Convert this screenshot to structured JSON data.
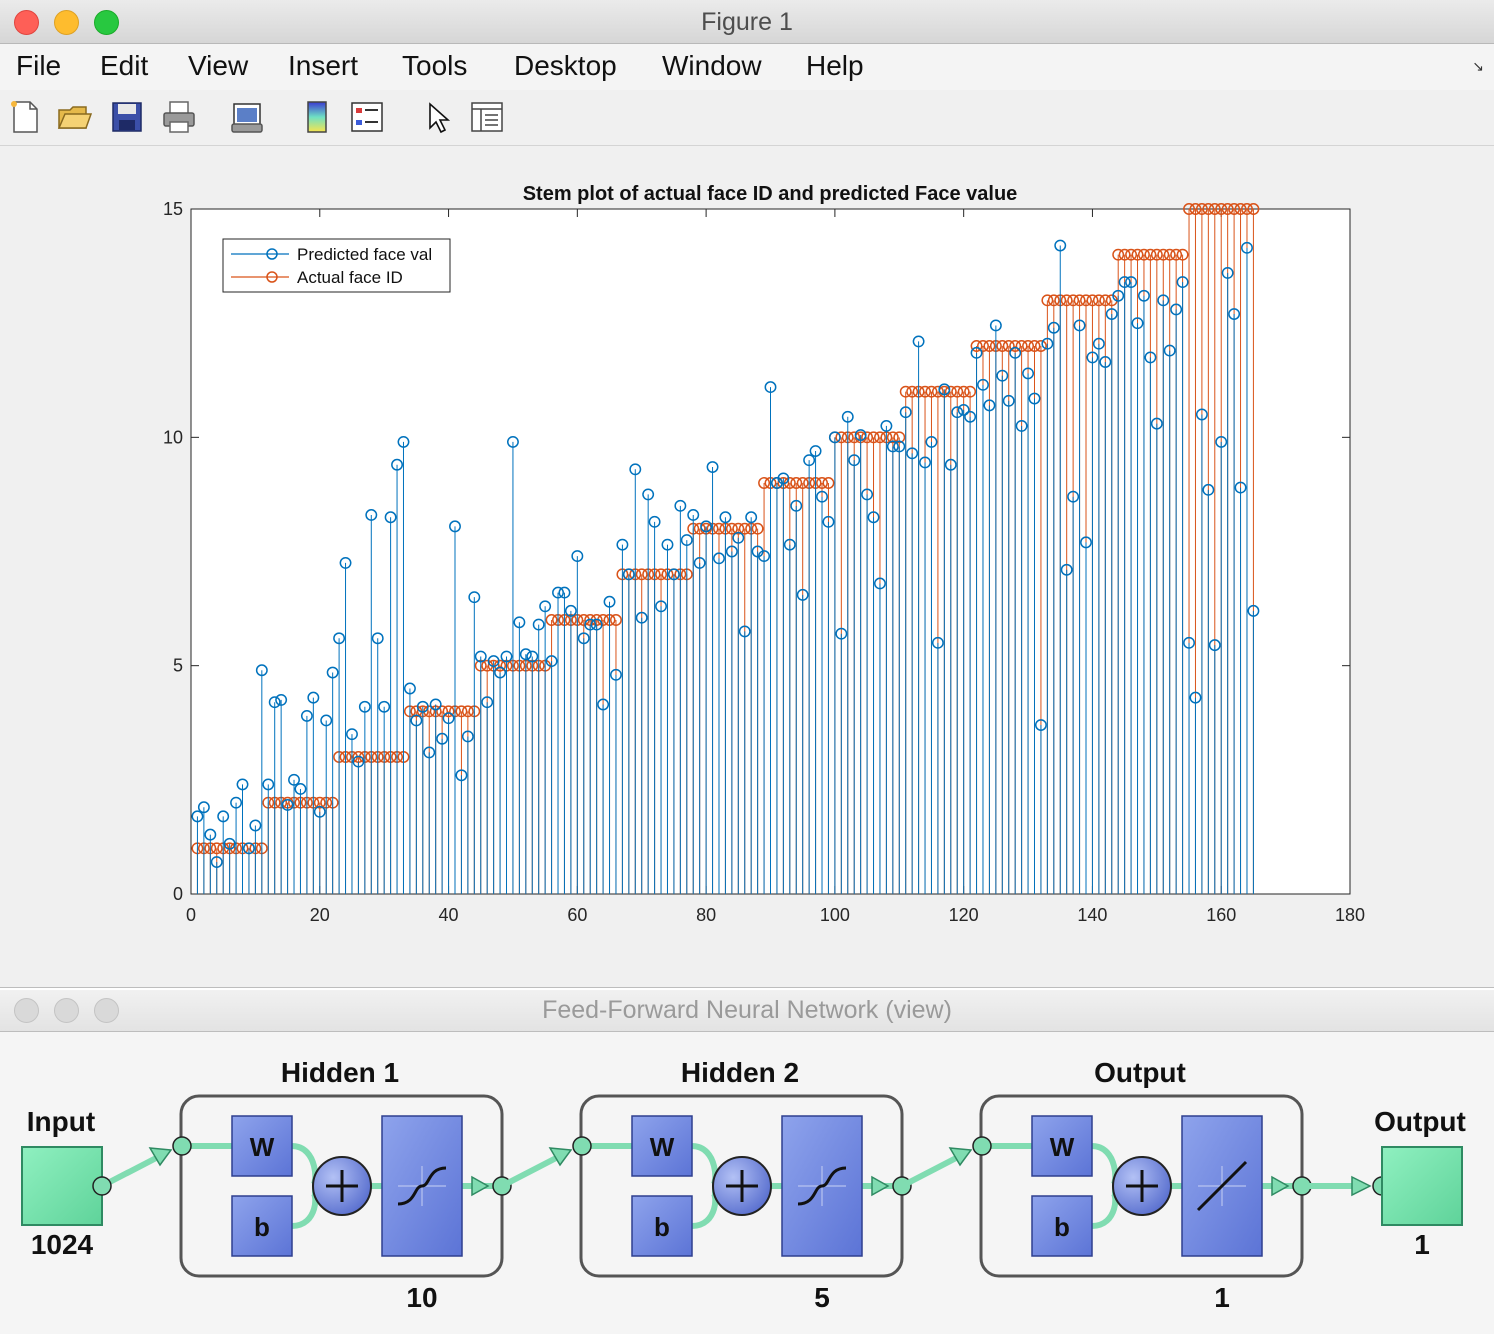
{
  "figure_window": {
    "title": "Figure 1",
    "menu": [
      "File",
      "Edit",
      "View",
      "Insert",
      "Tools",
      "Desktop",
      "Window",
      "Help"
    ],
    "toolbar_icons": [
      "new-figure-icon",
      "open-file-icon",
      "save-icon",
      "print-icon",
      "print-preview-icon",
      "colorbar-icon",
      "legend-icon",
      "pointer-icon",
      "property-editor-icon"
    ]
  },
  "chart_data": {
    "type": "stem",
    "title": "Stem plot of actual face ID and predicted Face value",
    "xlabel": "",
    "ylabel": "",
    "xlim": [
      0,
      180
    ],
    "ylim": [
      0,
      15
    ],
    "xticks": [
      "0",
      "20",
      "40",
      "60",
      "80",
      "100",
      "120",
      "140",
      "160",
      "180"
    ],
    "yticks": [
      "0",
      "5",
      "10",
      "15"
    ],
    "legend": {
      "position": "top-left",
      "entries": [
        "Predicted face val",
        "Actual face ID"
      ]
    },
    "colors": {
      "predicted": "#0072bd",
      "actual": "#d95319"
    },
    "series": [
      {
        "name": "Predicted face val",
        "values": [
          1.7,
          1.9,
          1.3,
          0.7,
          1.7,
          1.1,
          2.0,
          2.4,
          1.0,
          1.5,
          4.9,
          2.4,
          4.2,
          4.25,
          1.95,
          2.5,
          2.3,
          3.9,
          4.3,
          1.8,
          3.8,
          4.85,
          5.6,
          7.25,
          3.5,
          2.9,
          4.1,
          8.3,
          5.6,
          4.1,
          8.25,
          9.4,
          9.9,
          4.5,
          3.8,
          4.1,
          3.1,
          4.15,
          3.4,
          3.85,
          8.05,
          2.6,
          3.45,
          6.5,
          5.2,
          4.2,
          5.1,
          4.85,
          5.2,
          9.9,
          5.95,
          5.25,
          5.2,
          5.9,
          6.3,
          5.1,
          6.6,
          6.6,
          6.2,
          7.4,
          5.6,
          5.9,
          5.9,
          4.15,
          6.4,
          4.8,
          7.65,
          7.0,
          9.3,
          6.05,
          8.75,
          8.15,
          6.3,
          7.65,
          7.0,
          8.5,
          7.75,
          8.3,
          7.25,
          8.05,
          9.35,
          7.35,
          8.25,
          7.5,
          7.8,
          5.75,
          8.25,
          7.5,
          7.4,
          11.1,
          9.0,
          9.1,
          7.65,
          8.5,
          6.55,
          9.5,
          9.7,
          8.7,
          8.15,
          10.0,
          5.7,
          10.45,
          9.5,
          10.05,
          8.75,
          8.25,
          6.8,
          10.25,
          9.8,
          9.8,
          10.55,
          9.65,
          12.1,
          9.45,
          9.9,
          5.5,
          11.05,
          9.4,
          10.55,
          10.6,
          10.45,
          11.85,
          11.15,
          10.7,
          12.45,
          11.35,
          10.8,
          11.85,
          10.25,
          11.4,
          10.85,
          3.7,
          12.05,
          12.4,
          14.2,
          7.1,
          8.7,
          12.45,
          7.7,
          11.75,
          12.05,
          11.65,
          12.7,
          13.1,
          13.4,
          13.4,
          12.5,
          13.1,
          11.75,
          10.3,
          13.0,
          11.9,
          12.8,
          13.4,
          5.5,
          4.3,
          10.5,
          8.85,
          5.45,
          9.9,
          13.6,
          12.7,
          8.9,
          14.15,
          6.2
        ]
      },
      {
        "name": "Actual face ID",
        "values": [
          1,
          1,
          1,
          1,
          1,
          1,
          1,
          1,
          1,
          1,
          1,
          2,
          2,
          2,
          2,
          2,
          2,
          2,
          2,
          2,
          2,
          2,
          3,
          3,
          3,
          3,
          3,
          3,
          3,
          3,
          3,
          3,
          3,
          4,
          4,
          4,
          4,
          4,
          4,
          4,
          4,
          4,
          4,
          4,
          5,
          5,
          5,
          5,
          5,
          5,
          5,
          5,
          5,
          5,
          5,
          6,
          6,
          6,
          6,
          6,
          6,
          6,
          6,
          6,
          6,
          6,
          7,
          7,
          7,
          7,
          7,
          7,
          7,
          7,
          7,
          7,
          7,
          8,
          8,
          8,
          8,
          8,
          8,
          8,
          8,
          8,
          8,
          8,
          9,
          9,
          9,
          9,
          9,
          9,
          9,
          9,
          9,
          9,
          9,
          10,
          10,
          10,
          10,
          10,
          10,
          10,
          10,
          10,
          10,
          10,
          11,
          11,
          11,
          11,
          11,
          11,
          11,
          11,
          11,
          11,
          11,
          12,
          12,
          12,
          12,
          12,
          12,
          12,
          12,
          12,
          12,
          12,
          13,
          13,
          13,
          13,
          13,
          13,
          13,
          13,
          13,
          13,
          13,
          14,
          14,
          14,
          14,
          14,
          14,
          14,
          14,
          14,
          14,
          14,
          15,
          15,
          15,
          15,
          15,
          15,
          15,
          15,
          15,
          15,
          15
        ]
      }
    ]
  },
  "nn_window": {
    "title": "Feed-Forward Neural Network (view)",
    "input": {
      "label": "Input",
      "size": "1024"
    },
    "layers": [
      {
        "label": "Hidden 1",
        "size": "10",
        "weight": "W",
        "bias": "b",
        "transfer": "tansig"
      },
      {
        "label": "Hidden 2",
        "size": "5",
        "weight": "W",
        "bias": "b",
        "transfer": "tansig"
      },
      {
        "label": "Output",
        "size": "1",
        "weight": "W",
        "bias": "b",
        "transfer": "purelin"
      }
    ],
    "output": {
      "label": "Output",
      "size": "1"
    }
  }
}
